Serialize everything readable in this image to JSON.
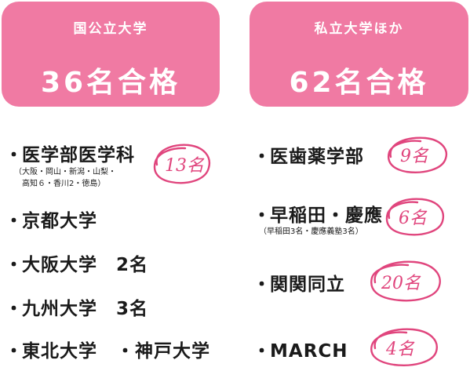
{
  "colors": {
    "accent_pink": "#f07aa3",
    "circle_pink": "#e0457d",
    "text": "#1a1a1a"
  },
  "boxes": {
    "national": {
      "label": "国公立大学",
      "count": "36名合格"
    },
    "private": {
      "label": "私立大学ほか",
      "count": "62名合格"
    }
  },
  "left_list": {
    "items": [
      {
        "bullet": "・",
        "label": "医学部医学科",
        "sub_lines": [
          "（大阪・岡山・新潟・山梨・",
          "高知６・香川2・徳島）"
        ],
        "mark": "13名"
      },
      {
        "bullet": "・",
        "label": "京都大学"
      },
      {
        "bullet": "・",
        "label": "大阪大学　2名"
      },
      {
        "bullet": "・",
        "label": "九州大学　3名"
      },
      {
        "bullet": "・",
        "label": "東北大学　・神戸大学"
      }
    ]
  },
  "right_list": {
    "items": [
      {
        "bullet": "・",
        "label": "医歯薬学部",
        "mark": "9名"
      },
      {
        "bullet": "・",
        "label": "早稲田・慶應",
        "sub_lines": [
          "（早稲田3名・慶應義塾3名）"
        ],
        "mark": "6名"
      },
      {
        "bullet": "・",
        "label": "関関同立",
        "mark": "20名"
      },
      {
        "bullet": "・",
        "label": "MARCH",
        "mark": "4名"
      }
    ]
  }
}
